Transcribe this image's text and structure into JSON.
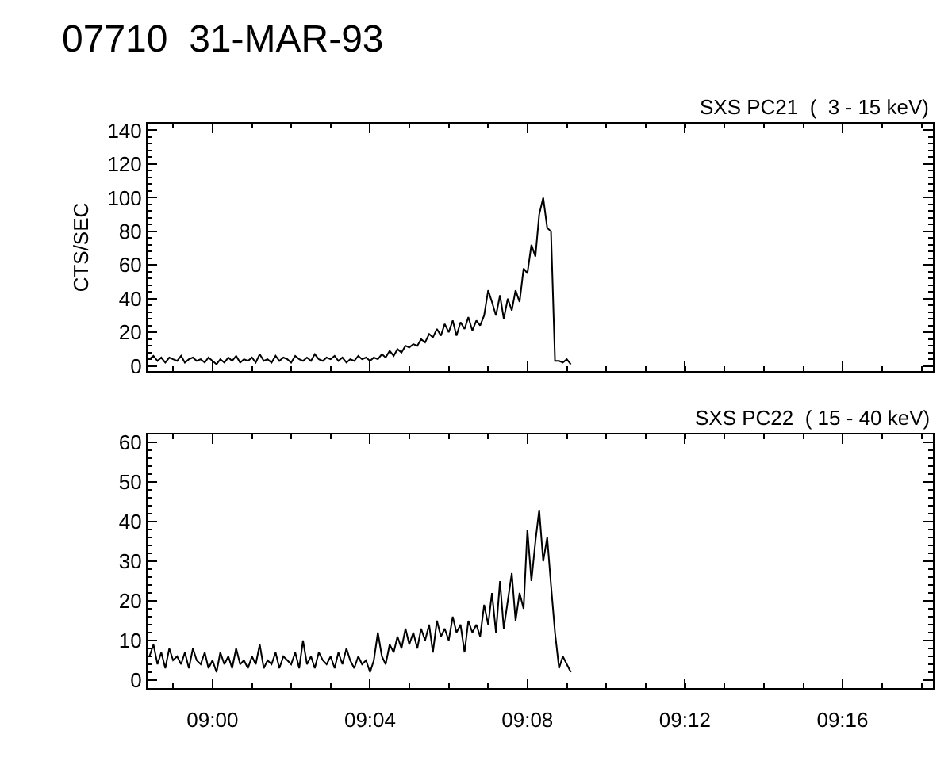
{
  "chart_data": [
    {
      "type": "line",
      "title": "07710  31-MAR-93",
      "subtitle": "SXS PC21  (  3 - 15 keV)",
      "ylabel": "CTS/SEC",
      "tick_labels": "y",
      "grid": false,
      "marker": "none",
      "line_style": "solid",
      "xlim": [
        8.9725,
        9.305
      ],
      "xticks": [
        {
          "value": 9.0,
          "label": null
        },
        {
          "value": 9.0667,
          "label": null
        },
        {
          "value": 9.1333,
          "label": null
        },
        {
          "value": 9.2,
          "label": null
        },
        {
          "value": 9.2667,
          "label": null
        }
      ],
      "ylim": [
        -3,
        144
      ],
      "yticks": [
        0,
        20,
        40,
        60,
        80,
        100,
        120,
        140
      ],
      "x": [
        8.9733,
        8.975,
        8.9767,
        8.9783,
        8.98,
        8.9817,
        8.9833,
        8.985,
        8.9867,
        8.9883,
        8.99,
        8.9917,
        8.9933,
        8.995,
        8.9967,
        8.9983,
        9.0,
        9.0017,
        9.0033,
        9.005,
        9.0067,
        9.0083,
        9.01,
        9.0117,
        9.0133,
        9.015,
        9.0167,
        9.0183,
        9.02,
        9.0217,
        9.0233,
        9.025,
        9.0267,
        9.0283,
        9.03,
        9.0317,
        9.0333,
        9.035,
        9.0367,
        9.0383,
        9.04,
        9.0417,
        9.0433,
        9.045,
        9.0467,
        9.0483,
        9.05,
        9.0517,
        9.0533,
        9.055,
        9.0567,
        9.0583,
        9.06,
        9.0617,
        9.0633,
        9.065,
        9.0667,
        9.0683,
        9.07,
        9.0717,
        9.0733,
        9.075,
        9.0767,
        9.0783,
        9.08,
        9.0817,
        9.0833,
        9.085,
        9.0867,
        9.0883,
        9.09,
        9.0917,
        9.0933,
        9.095,
        9.0967,
        9.0983,
        9.1,
        9.1017,
        9.1033,
        9.105,
        9.1067,
        9.1083,
        9.11,
        9.1117,
        9.1133,
        9.115,
        9.1167,
        9.1183,
        9.12,
        9.1217,
        9.1233,
        9.125,
        9.1267,
        9.1283,
        9.13,
        9.1317,
        9.1333,
        9.135,
        9.1367,
        9.1383,
        9.14,
        9.1417,
        9.1433,
        9.145,
        9.1467,
        9.1483,
        9.15,
        9.1517
      ],
      "series": [
        {
          "color": "#000000",
          "values": [
            4,
            6,
            3,
            5,
            2,
            5,
            4,
            3,
            6,
            2,
            4,
            5,
            3,
            4,
            2,
            5,
            3,
            1,
            4,
            2,
            5,
            3,
            6,
            2,
            4,
            3,
            5,
            2,
            7,
            3,
            4,
            2,
            6,
            3,
            5,
            4,
            2,
            6,
            4,
            3,
            5,
            3,
            7,
            4,
            3,
            5,
            4,
            6,
            3,
            5,
            2,
            4,
            3,
            6,
            4,
            5,
            3,
            5,
            4,
            7,
            5,
            9,
            6,
            10,
            8,
            12,
            11,
            13,
            12,
            16,
            14,
            19,
            17,
            22,
            18,
            25,
            20,
            27,
            18,
            26,
            22,
            29,
            21,
            27,
            24,
            30,
            45,
            38,
            30,
            42,
            28,
            40,
            33,
            45,
            38,
            58,
            55,
            72,
            65,
            90,
            100,
            82,
            80,
            3,
            3,
            2,
            4,
            1
          ]
        }
      ]
    },
    {
      "type": "line",
      "subtitle": "SXS PC22  ( 15 - 40 keV)",
      "grid": false,
      "marker": "none",
      "line_style": "solid",
      "xlim": [
        8.9725,
        9.305
      ],
      "xticks": [
        {
          "value": 9.0,
          "label": "09:00"
        },
        {
          "value": 9.0667,
          "label": "09:04"
        },
        {
          "value": 9.1333,
          "label": "09:08"
        },
        {
          "value": 9.2,
          "label": "09:12"
        },
        {
          "value": 9.2667,
          "label": "09:16"
        }
      ],
      "ylim": [
        -2,
        62
      ],
      "yticks": [
        0,
        10,
        20,
        30,
        40,
        50,
        60
      ],
      "x": [
        8.9733,
        8.975,
        8.9767,
        8.9783,
        8.98,
        8.9817,
        8.9833,
        8.985,
        8.9867,
        8.9883,
        8.99,
        8.9917,
        8.9933,
        8.995,
        8.9967,
        8.9983,
        9.0,
        9.0017,
        9.0033,
        9.005,
        9.0067,
        9.0083,
        9.01,
        9.0117,
        9.0133,
        9.015,
        9.0167,
        9.0183,
        9.02,
        9.0217,
        9.0233,
        9.025,
        9.0267,
        9.0283,
        9.03,
        9.0317,
        9.0333,
        9.035,
        9.0367,
        9.0383,
        9.04,
        9.0417,
        9.0433,
        9.045,
        9.0467,
        9.0483,
        9.05,
        9.0517,
        9.0533,
        9.055,
        9.0567,
        9.0583,
        9.06,
        9.0617,
        9.0633,
        9.065,
        9.0667,
        9.0683,
        9.07,
        9.0717,
        9.0733,
        9.075,
        9.0767,
        9.0783,
        9.08,
        9.0817,
        9.0833,
        9.085,
        9.0867,
        9.0883,
        9.09,
        9.0917,
        9.0933,
        9.095,
        9.0967,
        9.0983,
        9.1,
        9.1017,
        9.1033,
        9.105,
        9.1067,
        9.1083,
        9.11,
        9.1117,
        9.1133,
        9.115,
        9.1167,
        9.1183,
        9.12,
        9.1217,
        9.1233,
        9.125,
        9.1267,
        9.1283,
        9.13,
        9.1317,
        9.1333,
        9.135,
        9.1367,
        9.1383,
        9.14,
        9.1417,
        9.1433,
        9.145,
        9.1467,
        9.1483,
        9.15,
        9.1517
      ],
      "series": [
        {
          "color": "#000000",
          "values": [
            6,
            9,
            4,
            7,
            3,
            8,
            5,
            6,
            4,
            7,
            3,
            8,
            5,
            4,
            7,
            3,
            5,
            2,
            7,
            4,
            6,
            3,
            8,
            4,
            5,
            3,
            6,
            4,
            9,
            3,
            5,
            4,
            7,
            3,
            6,
            5,
            4,
            7,
            3,
            10,
            4,
            6,
            3,
            7,
            5,
            4,
            6,
            3,
            7,
            4,
            8,
            5,
            3,
            6,
            4,
            5,
            2,
            5,
            12,
            6,
            4,
            9,
            7,
            11,
            8,
            13,
            9,
            12,
            8,
            13,
            10,
            14,
            7,
            15,
            11,
            13,
            10,
            16,
            12,
            14,
            7,
            15,
            12,
            14,
            11,
            19,
            14,
            22,
            12,
            25,
            13,
            20,
            27,
            15,
            22,
            18,
            38,
            25,
            35,
            43,
            30,
            36,
            24,
            12,
            3,
            6,
            4,
            2
          ]
        }
      ]
    }
  ]
}
